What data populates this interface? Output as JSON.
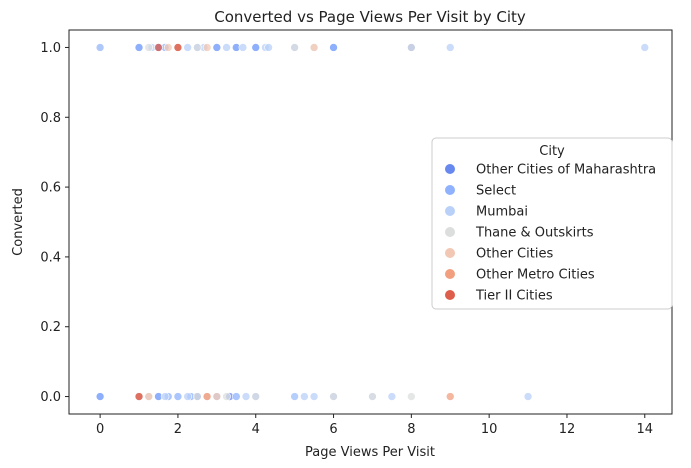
{
  "chart_data": {
    "type": "scatter",
    "title": "Converted vs Page Views Per Visit by City",
    "xlabel": "Page Views Per Visit",
    "ylabel": "Converted",
    "xlim": [
      -0.8,
      14.7
    ],
    "ylim": [
      -0.05,
      1.05
    ],
    "xticks": [
      0,
      2,
      4,
      6,
      8,
      10,
      12,
      14
    ],
    "yticks": [
      0.0,
      0.2,
      0.4,
      0.6,
      0.8,
      1.0
    ],
    "xtick_labels": [
      "0",
      "2",
      "4",
      "6",
      "8",
      "10",
      "12",
      "14"
    ],
    "ytick_labels": [
      "0.0",
      "0.2",
      "0.4",
      "0.6",
      "0.8",
      "1.0"
    ],
    "legend": {
      "title": "City",
      "placement": "center-right"
    },
    "series": [
      {
        "name": "Other Cities of Maharashtra",
        "color": "#6788ee",
        "points": [
          [
            0,
            1
          ],
          [
            1,
            1
          ],
          [
            1.5,
            1
          ],
          [
            3,
            1
          ],
          [
            3.5,
            1
          ],
          [
            4,
            1
          ],
          [
            6,
            1
          ],
          [
            0,
            0
          ],
          [
            1,
            0
          ],
          [
            1.5,
            0
          ],
          [
            2.5,
            0
          ],
          [
            3.33,
            0
          ],
          [
            8,
            1
          ]
        ]
      },
      {
        "name": "Select",
        "color": "#8fb1fe",
        "points": [
          [
            0,
            1
          ],
          [
            1,
            1
          ],
          [
            1.67,
            1
          ],
          [
            2,
            1
          ],
          [
            2.5,
            1
          ],
          [
            3,
            1
          ],
          [
            3.5,
            1
          ],
          [
            4,
            1
          ],
          [
            5,
            1
          ],
          [
            6,
            1
          ],
          [
            0,
            0
          ],
          [
            1,
            0
          ],
          [
            1.5,
            0
          ],
          [
            1.75,
            0
          ],
          [
            2,
            0
          ],
          [
            2.33,
            0
          ],
          [
            3,
            0
          ],
          [
            3.5,
            0
          ],
          [
            4,
            0
          ],
          [
            5,
            0
          ],
          [
            6,
            0
          ]
        ]
      },
      {
        "name": "Mumbai",
        "color": "#b9d0f9",
        "points": [
          [
            0,
            1
          ],
          [
            1.33,
            1
          ],
          [
            2.25,
            1
          ],
          [
            2.67,
            1
          ],
          [
            3.25,
            1
          ],
          [
            3.67,
            1
          ],
          [
            4.25,
            1
          ],
          [
            4.33,
            1
          ],
          [
            5,
            1
          ],
          [
            9,
            1
          ],
          [
            14,
            1
          ],
          [
            1.25,
            0
          ],
          [
            1.67,
            0
          ],
          [
            2.25,
            0
          ],
          [
            2.75,
            0
          ],
          [
            3.75,
            0
          ],
          [
            5,
            0
          ],
          [
            5.25,
            0
          ],
          [
            5.5,
            0
          ],
          [
            6,
            0
          ],
          [
            7,
            0
          ],
          [
            7.5,
            0
          ],
          [
            11,
            0
          ]
        ]
      },
      {
        "name": "Thane & Outskirts",
        "color": "#dcdddd",
        "points": [
          [
            1.25,
            1
          ],
          [
            2.5,
            1
          ],
          [
            5,
            1
          ],
          [
            5.5,
            1
          ],
          [
            8,
            1
          ],
          [
            1.25,
            0
          ],
          [
            2.5,
            0
          ],
          [
            3.25,
            0
          ],
          [
            4,
            0
          ],
          [
            6,
            0
          ],
          [
            7,
            0
          ],
          [
            8,
            0
          ]
        ]
      },
      {
        "name": "Other Cities",
        "color": "#f2c8b4",
        "points": [
          [
            1.75,
            1
          ],
          [
            2.75,
            1
          ],
          [
            5.5,
            1
          ],
          [
            1.25,
            0
          ],
          [
            2.75,
            0
          ],
          [
            3,
            0
          ]
        ]
      },
      {
        "name": "Other Metro Cities",
        "color": "#f29f80",
        "points": [
          [
            2,
            1
          ],
          [
            2.75,
            0
          ],
          [
            9,
            0
          ],
          [
            1,
            0
          ]
        ]
      },
      {
        "name": "Tier II Cities",
        "color": "#dd5f4b",
        "points": [
          [
            1.5,
            1
          ],
          [
            2,
            1
          ],
          [
            1,
            0
          ]
        ]
      }
    ]
  }
}
